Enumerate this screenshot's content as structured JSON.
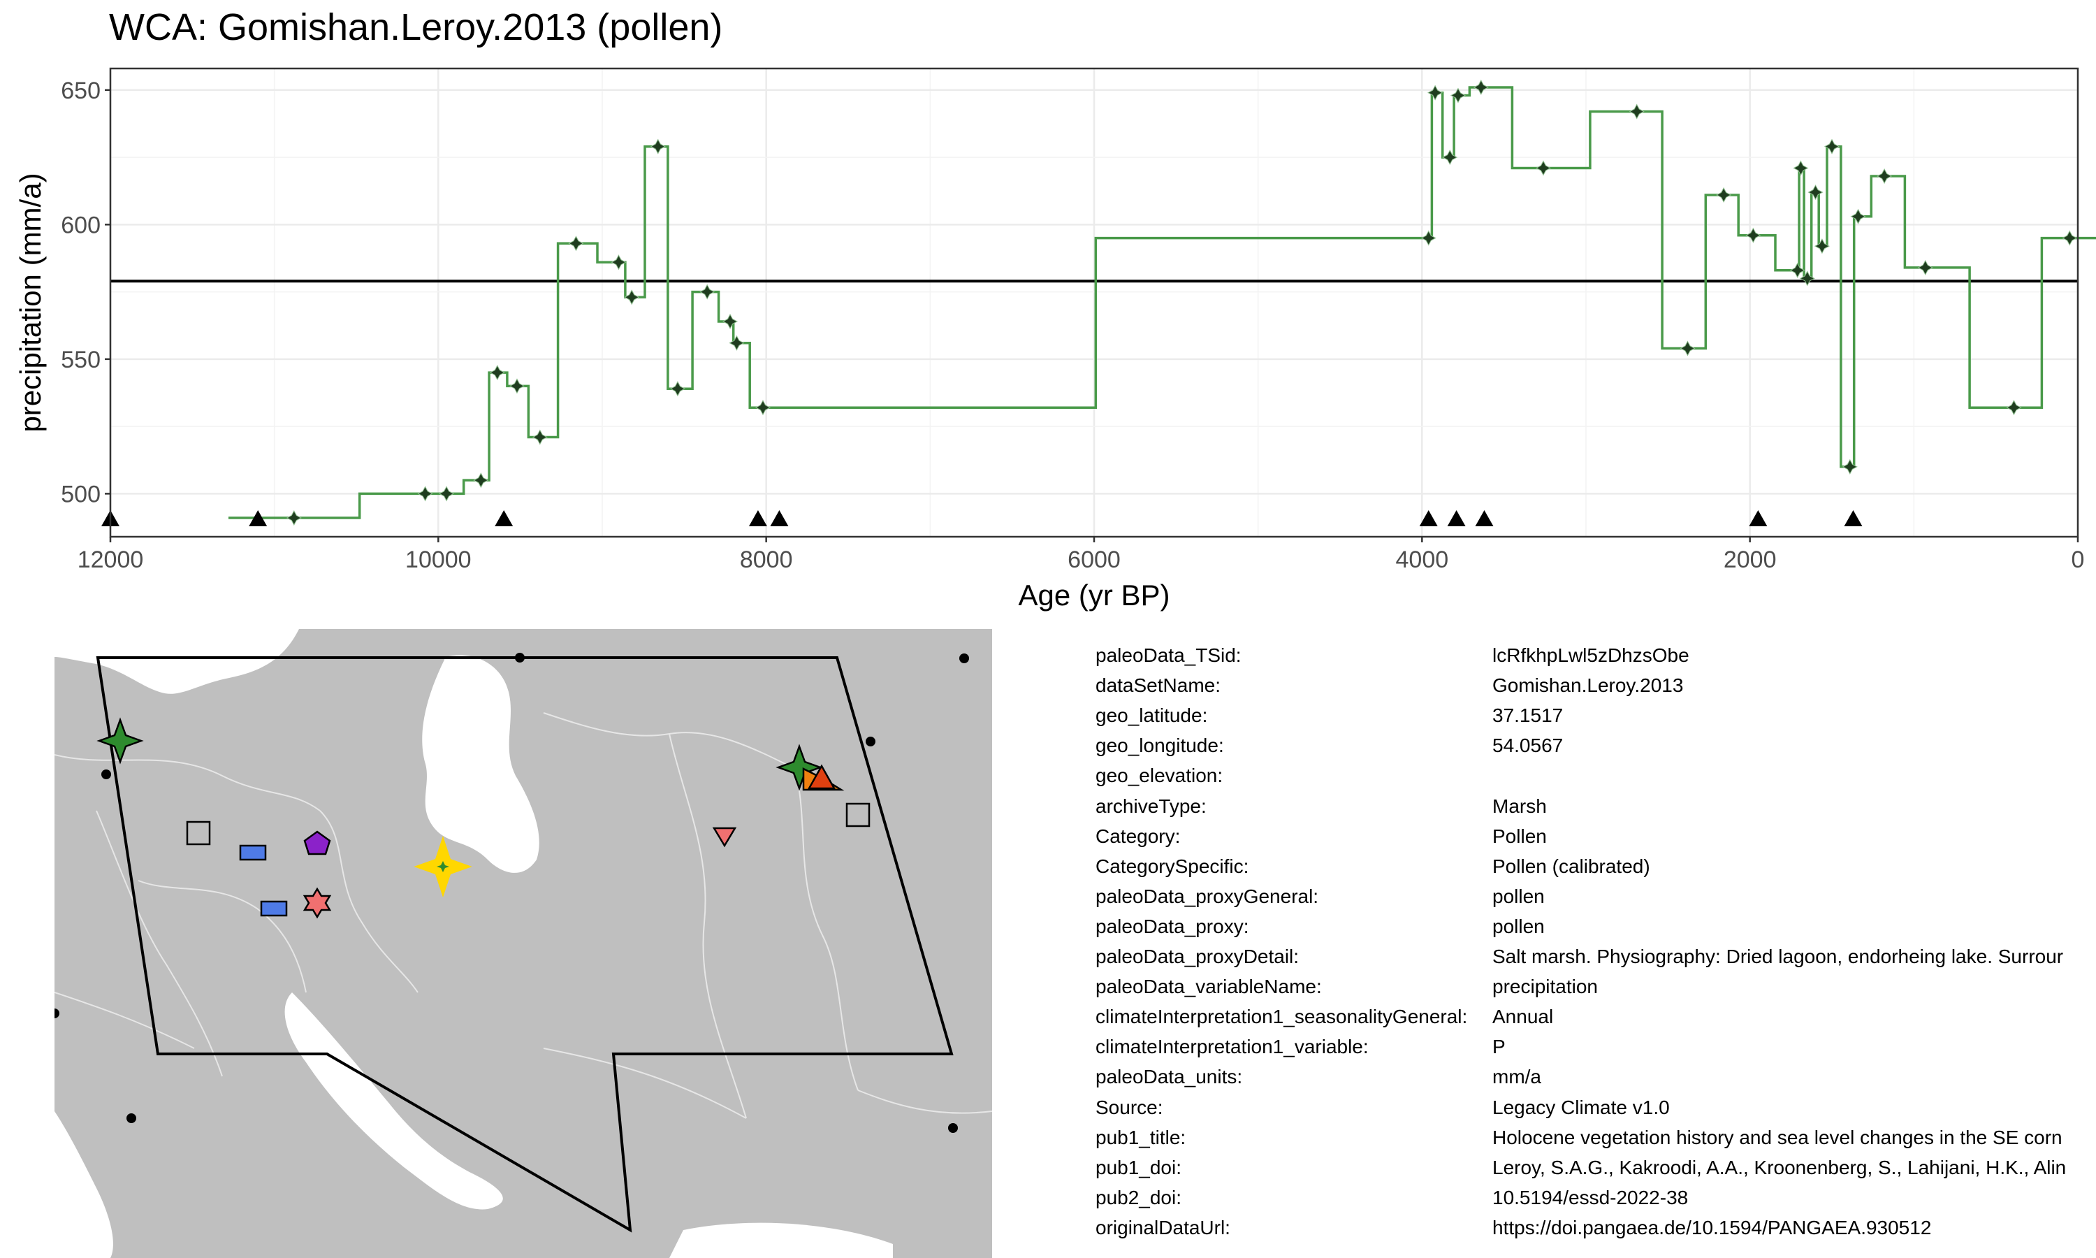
{
  "title": "WCA: Gomishan.Leroy.2013 (pollen)",
  "chart_data": {
    "type": "line",
    "step": true,
    "xlabel": "Age (yr BP)",
    "ylabel": "precipitation (mm/a)",
    "xlim": [
      12000,
      0
    ],
    "ylim": [
      484,
      658
    ],
    "x_reversed": true,
    "xticks": [
      12000,
      10000,
      8000,
      6000,
      4000,
      2000,
      0
    ],
    "yticks": [
      500,
      550,
      600,
      650
    ],
    "grid": true,
    "reference_line": 579,
    "line_color": "#4a9a4a",
    "point_color": "#1f3d1f",
    "series": [
      {
        "x": [
          10880,
          10080,
          9950,
          9740,
          9640,
          9520,
          9380,
          9160,
          8900,
          8820,
          8660,
          8540,
          8360,
          8220,
          8180,
          8020,
          3960,
          3920,
          3830,
          3780,
          3640,
          3260,
          2690,
          2380,
          2160,
          1980,
          1710,
          1690,
          1650,
          1600,
          1560,
          1500,
          1390,
          1340,
          1180,
          930,
          390,
          50
        ],
        "y": [
          491,
          500,
          500,
          505,
          545,
          540,
          521,
          593,
          586,
          573,
          629,
          539,
          575,
          564,
          556,
          532,
          595,
          649,
          625,
          648,
          651,
          621,
          642,
          554,
          611,
          596,
          583,
          621,
          580,
          612,
          592,
          629,
          510,
          603,
          618,
          584,
          532,
          595
        ]
      }
    ],
    "age_markers": [
      12000,
      11100,
      9600,
      8050,
      7920,
      3960,
      3790,
      3620,
      1950,
      1370
    ]
  },
  "map": {
    "land_color": "#bfbfbf",
    "water_color": "#ffffff",
    "border_color": "#e6e6e6",
    "region_outline_color": "#000000",
    "markers": [
      {
        "shape": "star4",
        "color": "#ffd700",
        "size": "large",
        "highlight": true
      },
      {
        "shape": "star4",
        "color": "#2e8b2e"
      },
      {
        "shape": "star4",
        "color": "#2e8b2e"
      },
      {
        "shape": "square",
        "color": "#bfbfbf"
      },
      {
        "shape": "square",
        "color": "#bfbfbf"
      },
      {
        "shape": "rect",
        "color": "#4f7be6"
      },
      {
        "shape": "rect",
        "color": "#4f7be6"
      },
      {
        "shape": "pentagon",
        "color": "#8b22c9"
      },
      {
        "shape": "hexagram",
        "color": "#f07070"
      },
      {
        "shape": "triangle-down",
        "color": "#f07070"
      },
      {
        "shape": "triangle",
        "color": "#e04010"
      },
      {
        "shape": "flag",
        "color": "#f08010"
      }
    ]
  },
  "metadata": [
    {
      "key": "paleoData_TSid:",
      "value": "lcRfkhpLwl5zDhzsObe"
    },
    {
      "key": "dataSetName:",
      "value": "Gomishan.Leroy.2013"
    },
    {
      "key": "geo_latitude:",
      "value": "37.1517"
    },
    {
      "key": "geo_longitude:",
      "value": "54.0567"
    },
    {
      "key": "geo_elevation:",
      "value": ""
    },
    {
      "key": "archiveType:",
      "value": "Marsh"
    },
    {
      "key": "Category:",
      "value": "Pollen"
    },
    {
      "key": "CategorySpecific:",
      "value": "Pollen (calibrated)"
    },
    {
      "key": "paleoData_proxyGeneral:",
      "value": "pollen"
    },
    {
      "key": "paleoData_proxy:",
      "value": "pollen"
    },
    {
      "key": "paleoData_proxyDetail:",
      "value": "Salt marsh. Physiography: Dried lagoon, endorheing lake. Surrour"
    },
    {
      "key": "paleoData_variableName:",
      "value": "precipitation"
    },
    {
      "key": "climateInterpretation1_seasonalityGeneral:",
      "value": "Annual"
    },
    {
      "key": "climateInterpretation1_variable:",
      "value": "P"
    },
    {
      "key": "paleoData_units:",
      "value": "mm/a"
    },
    {
      "key": "Source:",
      "value": "Legacy Climate v1.0"
    },
    {
      "key": "pub1_title:",
      "value": "Holocene vegetation history and sea level changes in the SE corn"
    },
    {
      "key": "pub1_doi:",
      "value": "Leroy, S.A.G., Kakroodi, A.A., Kroonenberg, S., Lahijani, H.K., Alin"
    },
    {
      "key": "pub2_doi:",
      "value": "10.5194/essd-2022-38"
    },
    {
      "key": "originalDataUrl:",
      "value": "https://doi.pangaea.de/10.1594/PANGAEA.930512"
    }
  ]
}
